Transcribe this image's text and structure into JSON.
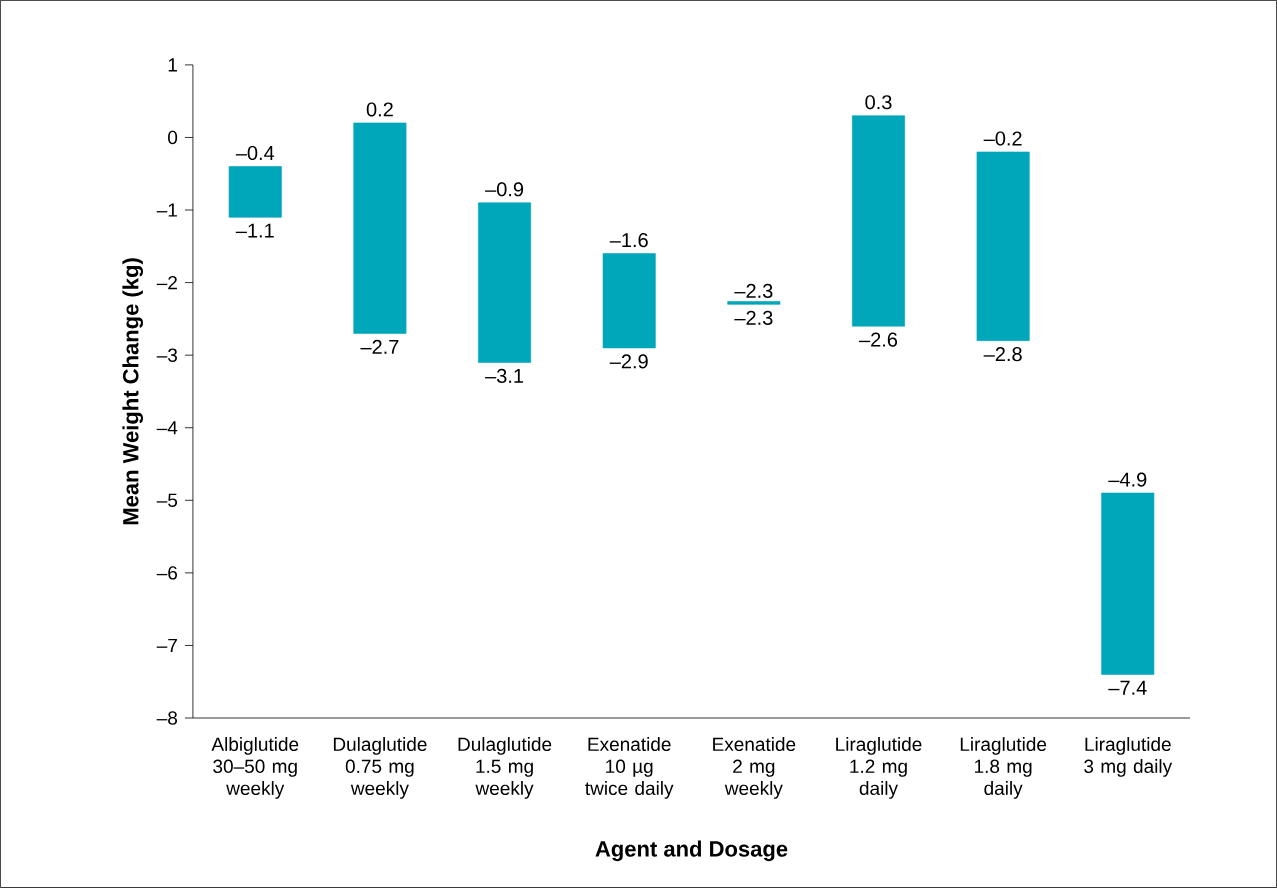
{
  "chart_data": {
    "type": "bar",
    "xlabel": "Agent and Dosage",
    "ylabel": "Mean Weight Change (kg)",
    "categories": [
      "Albiglutide 30–50 mg weekly",
      "Dulaglutide 0.75 mg weekly",
      "Dulaglutide 1.5 mg weekly",
      "Exenatide 10 µg twice daily",
      "Exenatide 2 mg weekly",
      "Liraglutide 1.2 mg daily",
      "Liraglutide 1.8 mg daily",
      "Liraglutide 3 mg daily"
    ],
    "base": [
      -1.1,
      -2.7,
      -3.1,
      -2.9,
      -2.3,
      -2.6,
      -2.8,
      -7.4
    ],
    "values": [
      0.7,
      2.9,
      2.2,
      1.3,
      0.04,
      2.9,
      2.6,
      2.5
    ],
    "color": "#00a6b9",
    "ylim": [
      -8,
      1
    ],
    "yticks": [
      {
        "value": -8,
        "label": "–8"
      },
      {
        "value": -7,
        "label": "–7"
      },
      {
        "value": -6,
        "label": "–6"
      },
      {
        "value": -5,
        "label": "–5"
      },
      {
        "value": -4,
        "label": "–4"
      },
      {
        "value": -3,
        "label": "–3"
      },
      {
        "value": -2,
        "label": "–2"
      },
      {
        "value": -1,
        "label": "–1"
      },
      0,
      1
    ],
    "annotations": [
      {
        "text": "–0.4",
        "x": "Albiglutide 30–50 mg weekly",
        "y": -0.4
      },
      {
        "text": "–1.1",
        "x": "Albiglutide 30–50 mg weekly",
        "y": -1.1
      },
      {
        "text": "0.2",
        "x": "Dulaglutide 0.75 mg weekly",
        "y": 0.2
      },
      {
        "text": "–2.7",
        "x": "Dulaglutide 0.75 mg weekly",
        "y": -2.7
      },
      {
        "text": "–0.9",
        "x": "Dulaglutide 1.5 mg weekly",
        "y": -0.9
      },
      {
        "text": "–3.1",
        "x": "Dulaglutide 1.5 mg weekly",
        "y": -3.1
      },
      {
        "text": "–1.6",
        "x": "Exenatide 10 µg twice daily",
        "y": -1.6
      },
      {
        "text": "–2.9",
        "x": "Exenatide 10 µg twice daily",
        "y": -2.9
      },
      {
        "text": "–2.3",
        "x": "Exenatide 2 mg weekly",
        "y": -2.3
      },
      {
        "text": "–2.3",
        "x": "Exenatide 2 mg weekly",
        "y": -2.3
      },
      {
        "text": "0.3",
        "x": "Liraglutide 1.2 mg daily",
        "y": 0.3
      },
      {
        "text": "–2.6",
        "x": "Liraglutide 1.2 mg daily",
        "y": -2.6
      },
      {
        "text": "–0.2",
        "x": "Liraglutide 1.8 mg daily",
        "y": -0.2
      },
      {
        "text": "–2.8",
        "x": "Liraglutide 1.8 mg daily",
        "y": -2.8
      },
      {
        "text": "–4.9",
        "x": "Liraglutide 3 mg daily",
        "y": -4.9
      },
      {
        "text": "–7.4",
        "x": "Liraglutide 3 mg daily",
        "y": -7.4
      }
    ]
  }
}
